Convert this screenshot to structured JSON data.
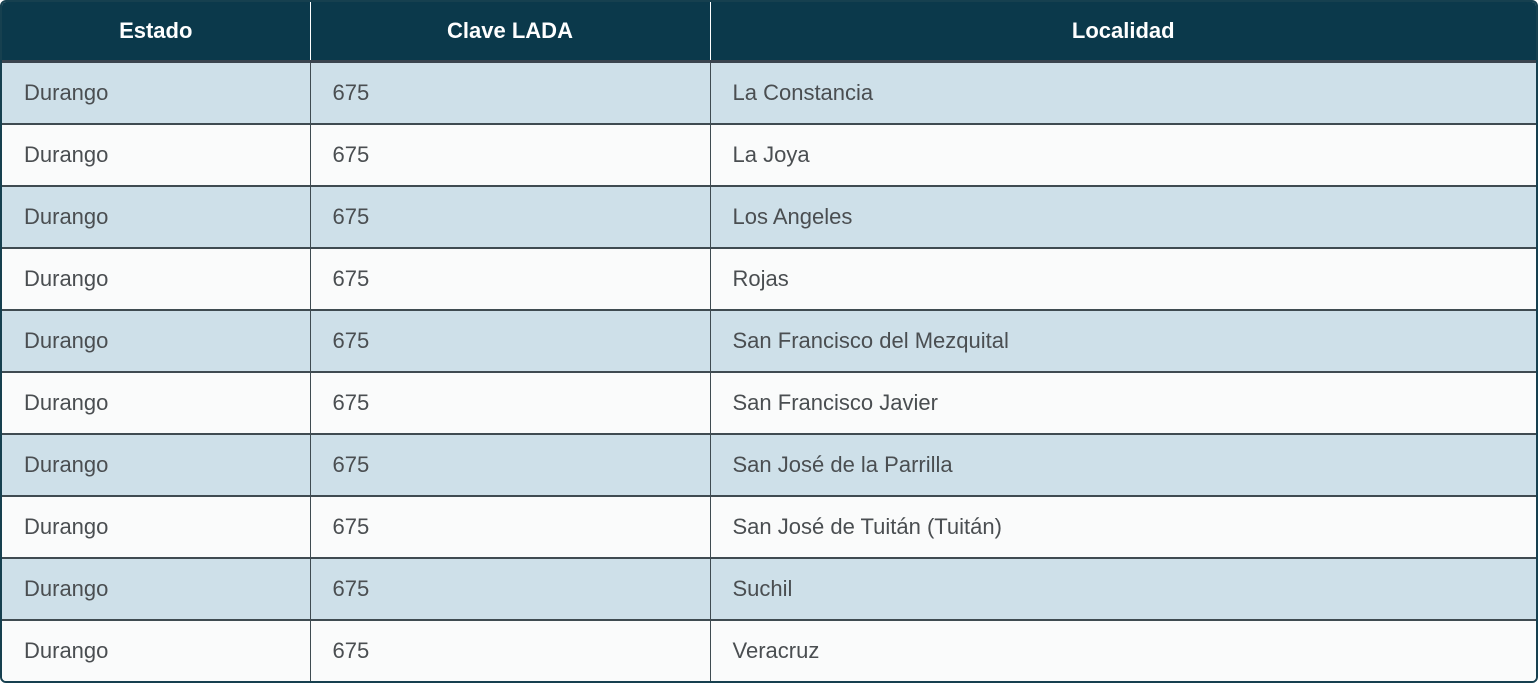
{
  "table": {
    "columns": [
      {
        "label": "Estado"
      },
      {
        "label": "Clave LADA"
      },
      {
        "label": "Localidad"
      }
    ],
    "rows": [
      {
        "estado": "Durango",
        "lada": "675",
        "localidad": "La Constancia"
      },
      {
        "estado": "Durango",
        "lada": "675",
        "localidad": "La Joya"
      },
      {
        "estado": "Durango",
        "lada": "675",
        "localidad": "Los Angeles"
      },
      {
        "estado": "Durango",
        "lada": "675",
        "localidad": "Rojas"
      },
      {
        "estado": "Durango",
        "lada": "675",
        "localidad": "San Francisco del Mezquital"
      },
      {
        "estado": "Durango",
        "lada": "675",
        "localidad": "San Francisco Javier"
      },
      {
        "estado": "Durango",
        "lada": "675",
        "localidad": "San José de la Parrilla"
      },
      {
        "estado": "Durango",
        "lada": "675",
        "localidad": "San José de Tuitán (Tuitán)"
      },
      {
        "estado": "Durango",
        "lada": "675",
        "localidad": "Suchil"
      },
      {
        "estado": "Durango",
        "lada": "675",
        "localidad": "Veracruz"
      }
    ]
  },
  "colors": {
    "header_bg": "#0b394b",
    "header_text": "#ffffff",
    "row_alt_bg": "#cee0e9",
    "row_bg": "#fafbfb",
    "grid_line": "#3f4b51",
    "outer_border": "#16404f",
    "body_text": "#4a4e51"
  }
}
